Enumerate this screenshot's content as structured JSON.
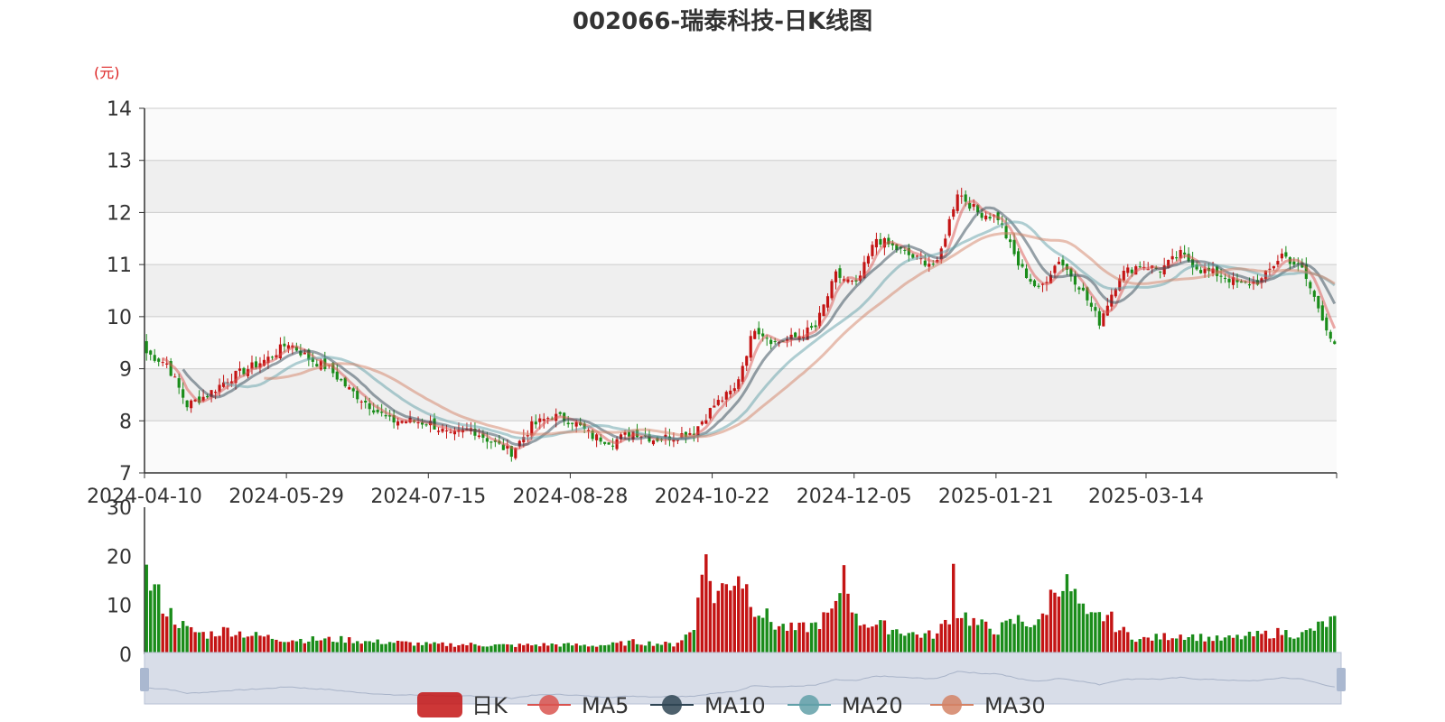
{
  "chart_data": {
    "type": "candlestick",
    "title": "002066-瑞泰科技-日K线图",
    "price_unit": "(元)",
    "price_axis": {
      "min": 7,
      "max": 14,
      "ticks": [
        "7",
        "8",
        "9",
        "10",
        "11",
        "12",
        "13",
        "14"
      ]
    },
    "volume_axis": {
      "min": 0,
      "max": 30,
      "ticks": [
        "0",
        "10",
        "20",
        "30"
      ]
    },
    "x_tick_labels": [
      "2024-04-10",
      "2024-05-29",
      "2024-07-15",
      "2024-08-28",
      "2024-10-22",
      "2024-12-05",
      "2025-01-21",
      "2025-03-14"
    ],
    "grid": true,
    "legend_position": "bottom",
    "legend": [
      "日K",
      "MA5",
      "MA10",
      "MA20",
      "MA30"
    ],
    "colors": {
      "up": "#c41414",
      "down": "#1a8c1a",
      "MA5": "#d9534f",
      "MA10": "#2f4554",
      "MA20": "#61a0a8",
      "MA30": "#d48265"
    },
    "close_anchors": [
      [
        0,
        9.3
      ],
      [
        5,
        9.1
      ],
      [
        10,
        8.3
      ],
      [
        15,
        8.5
      ],
      [
        20,
        8.8
      ],
      [
        25,
        9.0
      ],
      [
        30,
        9.2
      ],
      [
        35,
        9.5
      ],
      [
        40,
        9.2
      ],
      [
        45,
        9.0
      ],
      [
        50,
        8.6
      ],
      [
        55,
        8.3
      ],
      [
        60,
        8.0
      ],
      [
        65,
        8.0
      ],
      [
        70,
        7.95
      ],
      [
        75,
        7.7
      ],
      [
        80,
        7.85
      ],
      [
        85,
        7.6
      ],
      [
        90,
        7.4
      ],
      [
        95,
        7.9
      ],
      [
        100,
        8.1
      ],
      [
        105,
        8.0
      ],
      [
        110,
        7.7
      ],
      [
        115,
        7.6
      ],
      [
        120,
        7.8
      ],
      [
        125,
        7.65
      ],
      [
        130,
        7.7
      ],
      [
        135,
        7.8
      ],
      [
        140,
        8.3
      ],
      [
        145,
        8.6
      ],
      [
        150,
        9.8
      ],
      [
        155,
        9.5
      ],
      [
        160,
        9.6
      ],
      [
        165,
        9.8
      ],
      [
        170,
        10.8
      ],
      [
        175,
        10.6
      ],
      [
        180,
        11.5
      ],
      [
        185,
        11.3
      ],
      [
        190,
        11.1
      ],
      [
        195,
        11.0
      ],
      [
        200,
        12.4
      ],
      [
        205,
        12.0
      ],
      [
        210,
        11.9
      ],
      [
        215,
        11.0
      ],
      [
        220,
        10.5
      ],
      [
        225,
        11.1
      ],
      [
        230,
        10.6
      ],
      [
        235,
        9.9
      ],
      [
        240,
        10.8
      ],
      [
        245,
        11.0
      ],
      [
        250,
        10.9
      ],
      [
        255,
        11.2
      ],
      [
        260,
        10.9
      ],
      [
        265,
        10.8
      ],
      [
        270,
        10.6
      ],
      [
        275,
        10.7
      ],
      [
        280,
        11.2
      ],
      [
        285,
        10.9
      ],
      [
        290,
        10.0
      ],
      [
        293,
        9.4
      ]
    ],
    "volume_anchors": [
      [
        0,
        16
      ],
      [
        5,
        9
      ],
      [
        10,
        5
      ],
      [
        15,
        4
      ],
      [
        20,
        5
      ],
      [
        25,
        4
      ],
      [
        30,
        3.5
      ],
      [
        35,
        3
      ],
      [
        40,
        3
      ],
      [
        45,
        3
      ],
      [
        50,
        3
      ],
      [
        55,
        2.5
      ],
      [
        60,
        2.5
      ],
      [
        70,
        2
      ],
      [
        80,
        2
      ],
      [
        90,
        1.8
      ],
      [
        100,
        2
      ],
      [
        110,
        1.8
      ],
      [
        115,
        2
      ],
      [
        120,
        2.5
      ],
      [
        130,
        2
      ],
      [
        135,
        5
      ],
      [
        137,
        21
      ],
      [
        140,
        12
      ],
      [
        143,
        14
      ],
      [
        146,
        17
      ],
      [
        150,
        10
      ],
      [
        155,
        6
      ],
      [
        160,
        5
      ],
      [
        165,
        6
      ],
      [
        170,
        9
      ],
      [
        172,
        18
      ],
      [
        175,
        7
      ],
      [
        180,
        6
      ],
      [
        190,
        4
      ],
      [
        195,
        4
      ],
      [
        198,
        8
      ],
      [
        199,
        17.5
      ],
      [
        200,
        9
      ],
      [
        205,
        6
      ],
      [
        210,
        5
      ],
      [
        215,
        7
      ],
      [
        220,
        6
      ],
      [
        225,
        15.5
      ],
      [
        228,
        13
      ],
      [
        232,
        7
      ],
      [
        237,
        8
      ],
      [
        240,
        5
      ],
      [
        245,
        3
      ],
      [
        250,
        3.5
      ],
      [
        255,
        4
      ],
      [
        260,
        3.5
      ],
      [
        265,
        3
      ],
      [
        270,
        3.5
      ],
      [
        275,
        4
      ],
      [
        280,
        4.5
      ],
      [
        285,
        4
      ],
      [
        290,
        6
      ],
      [
        293,
        7
      ]
    ]
  }
}
